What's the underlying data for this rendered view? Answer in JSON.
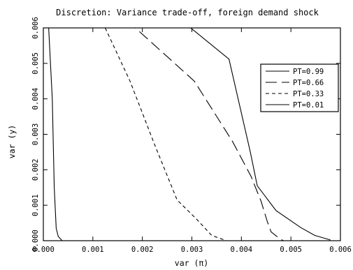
{
  "chart_data": {
    "type": "line",
    "title": "Discretion: Variance trade-off, foreign demand shock",
    "xlabel": "var (π)",
    "ylabel": "var (y)",
    "xlim": [
      0.0,
      0.006
    ],
    "ylim": [
      0.0,
      0.006
    ],
    "xticks": [
      "0.000",
      "0.001",
      "0.002",
      "0.003",
      "0.004",
      "0.005",
      "0.006"
    ],
    "yticks": [
      "0.000",
      "0.001",
      "0.002",
      "0.003",
      "0.004",
      "0.005",
      "0.006"
    ],
    "grid": false,
    "legend_position": "top-right",
    "series": [
      {
        "name": "PT=0.99",
        "dash": "solid",
        "points": [
          [
            0.0028,
            0.0062
          ],
          [
            0.00375,
            0.00512
          ],
          [
            0.00418,
            0.0025
          ],
          [
            0.00432,
            0.00155
          ],
          [
            0.0047,
            0.00085
          ],
          [
            0.0052,
            0.00037
          ],
          [
            0.00548,
            0.00015
          ],
          [
            0.0058,
            2e-05
          ]
        ]
      },
      {
        "name": "PT=0.66",
        "dash": "longdash",
        "points": [
          [
            0.0017,
            0.0062
          ],
          [
            0.00305,
            0.0045
          ],
          [
            0.00382,
            0.0028
          ],
          [
            0.0042,
            0.0018
          ],
          [
            0.0044,
            0.0011
          ],
          [
            0.00452,
            0.00055
          ],
          [
            0.0046,
            0.00025
          ],
          [
            0.00478,
            5e-05
          ],
          [
            0.00485,
            0.0
          ]
        ]
      },
      {
        "name": "PT=0.33",
        "dash": "shortdash",
        "points": [
          [
            0.00125,
            0.006
          ],
          [
            0.00175,
            0.0045
          ],
          [
            0.00225,
            0.0027
          ],
          [
            0.0027,
            0.00115
          ],
          [
            0.0031,
            0.0006
          ],
          [
            0.0034,
            0.00015
          ],
          [
            0.0037,
            0.0
          ]
        ]
      },
      {
        "name": "PT=0.01",
        "dash": "solid",
        "points": [
          [
            0.0001,
            0.0062
          ],
          [
            0.00018,
            0.004
          ],
          [
            0.00022,
            0.0015
          ],
          [
            0.00026,
            0.00035
          ],
          [
            0.0003,
            0.00012
          ],
          [
            0.00038,
            0.0
          ]
        ]
      }
    ]
  }
}
